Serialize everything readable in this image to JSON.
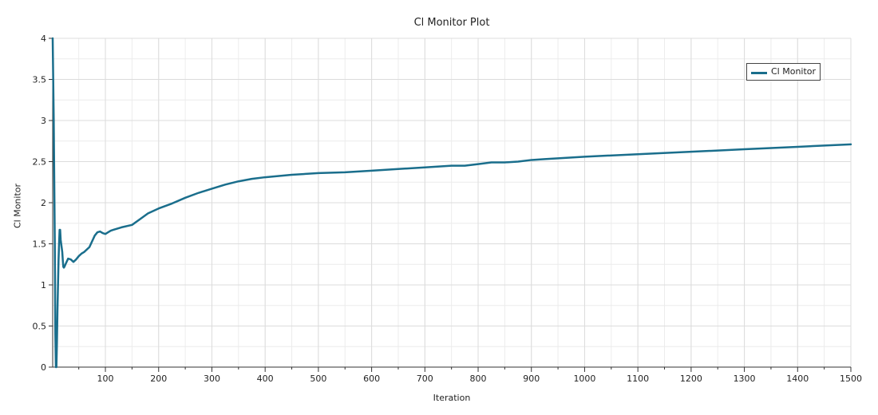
{
  "chart_data": {
    "type": "line",
    "title": "Cl Monitor Plot",
    "xlabel": "Iteration",
    "ylabel": "Cl Monitor",
    "xlim": [
      1,
      1500
    ],
    "ylim": [
      0,
      4
    ],
    "x_ticks": [
      100,
      200,
      300,
      400,
      500,
      600,
      700,
      800,
      900,
      1000,
      1100,
      1200,
      1300,
      1400,
      1500
    ],
    "y_ticks": [
      0,
      0.5,
      1,
      1.5,
      2,
      2.5,
      3,
      3.5,
      4
    ],
    "y_tick_labels": [
      "0",
      "0.5",
      "1",
      "1.5",
      "2",
      "2.5",
      "3",
      "3.5",
      "4"
    ],
    "grid": true,
    "legend": "top-right",
    "series": [
      {
        "name": "Cl Monitor",
        "color": "#1a6e8c",
        "x": [
          1,
          3,
          5,
          6,
          7,
          8,
          9,
          10,
          11,
          12,
          13,
          14,
          15,
          16,
          17,
          18,
          19,
          20,
          21,
          22,
          23,
          25,
          30,
          35,
          40,
          45,
          50,
          55,
          60,
          70,
          80,
          85,
          90,
          95,
          100,
          105,
          110,
          115,
          120,
          130,
          150,
          165,
          180,
          200,
          225,
          250,
          275,
          300,
          325,
          350,
          375,
          400,
          450,
          500,
          550,
          600,
          650,
          700,
          750,
          775,
          800,
          825,
          850,
          875,
          900,
          925,
          950,
          1000,
          1100,
          1200,
          1300,
          1400,
          1500
        ],
        "y": [
          4.0,
          3.0,
          1.5,
          0.4,
          0.0,
          0.0,
          0.3,
          0.7,
          1.0,
          1.3,
          1.5,
          1.67,
          1.67,
          1.55,
          1.5,
          1.45,
          1.4,
          1.3,
          1.22,
          1.21,
          1.22,
          1.25,
          1.32,
          1.31,
          1.28,
          1.31,
          1.35,
          1.38,
          1.4,
          1.46,
          1.6,
          1.64,
          1.65,
          1.63,
          1.62,
          1.64,
          1.66,
          1.67,
          1.68,
          1.7,
          1.73,
          1.8,
          1.87,
          1.93,
          1.99,
          2.06,
          2.12,
          2.17,
          2.22,
          2.26,
          2.29,
          2.31,
          2.34,
          2.36,
          2.37,
          2.39,
          2.41,
          2.43,
          2.45,
          2.45,
          2.47,
          2.49,
          2.49,
          2.5,
          2.52,
          2.53,
          2.54,
          2.56,
          2.59,
          2.62,
          2.65,
          2.68,
          2.71
        ]
      }
    ]
  }
}
